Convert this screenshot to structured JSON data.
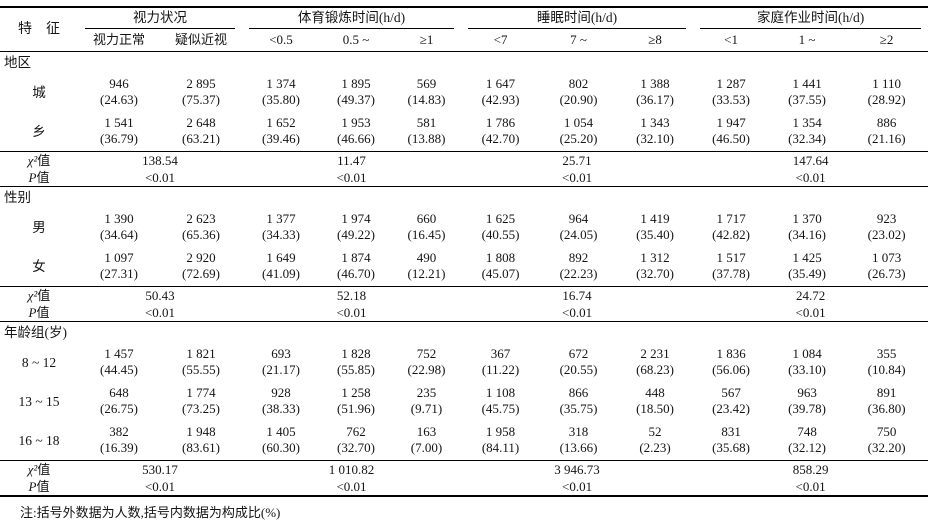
{
  "table": {
    "feature_header": "特　征",
    "groups": [
      {
        "label": "视力状况",
        "cols": [
          "视力正常",
          "疑似近视"
        ]
      },
      {
        "label": "体育锻炼时间(h/d)",
        "cols": [
          "<0.5",
          "0.5 ~",
          "≥1"
        ]
      },
      {
        "label": "睡眠时间(h/d)",
        "cols": [
          "<7",
          "7 ~",
          "≥8"
        ]
      },
      {
        "label": "家庭作业时间(h/d)",
        "cols": [
          "<1",
          "1 ~",
          "≥2"
        ]
      }
    ],
    "sections": [
      {
        "label": "地区",
        "rows": [
          {
            "label": "城",
            "cells": [
              [
                "946",
                "(24.63)"
              ],
              [
                "2 895",
                "(75.37)"
              ],
              [
                "1 374",
                "(35.80)"
              ],
              [
                "1 895",
                "(49.37)"
              ],
              [
                "569",
                "(14.83)"
              ],
              [
                "1 647",
                "(42.93)"
              ],
              [
                "802",
                "(20.90)"
              ],
              [
                "1 388",
                "(36.17)"
              ],
              [
                "1 287",
                "(33.53)"
              ],
              [
                "1 441",
                "(37.55)"
              ],
              [
                "1 110",
                "(28.92)"
              ]
            ]
          },
          {
            "label": "乡",
            "cells": [
              [
                "1 541",
                "(36.79)"
              ],
              [
                "2 648",
                "(63.21)"
              ],
              [
                "1 652",
                "(39.46)"
              ],
              [
                "1 953",
                "(46.66)"
              ],
              [
                "581",
                "(13.88)"
              ],
              [
                "1 786",
                "(42.70)"
              ],
              [
                "1 054",
                "(25.20)"
              ],
              [
                "1 343",
                "(32.10)"
              ],
              [
                "1 947",
                "(46.50)"
              ],
              [
                "1 354",
                "(32.34)"
              ],
              [
                "886",
                "(21.16)"
              ]
            ]
          }
        ],
        "stat_rows": [
          {
            "sym": "χ²",
            "suffix": "值",
            "values": [
              "138.54",
              "11.47",
              "25.71",
              "147.64"
            ]
          },
          {
            "sym": "P",
            "suffix": "值",
            "values": [
              "<0.01",
              "<0.01",
              "<0.01",
              "<0.01"
            ]
          }
        ]
      },
      {
        "label": "性别",
        "rows": [
          {
            "label": "男",
            "cells": [
              [
                "1 390",
                "(34.64)"
              ],
              [
                "2 623",
                "(65.36)"
              ],
              [
                "1 377",
                "(34.33)"
              ],
              [
                "1 974",
                "(49.22)"
              ],
              [
                "660",
                "(16.45)"
              ],
              [
                "1 625",
                "(40.55)"
              ],
              [
                "964",
                "(24.05)"
              ],
              [
                "1 419",
                "(35.40)"
              ],
              [
                "1 717",
                "(42.82)"
              ],
              [
                "1 370",
                "(34.16)"
              ],
              [
                "923",
                "(23.02)"
              ]
            ]
          },
          {
            "label": "女",
            "cells": [
              [
                "1 097",
                "(27.31)"
              ],
              [
                "2 920",
                "(72.69)"
              ],
              [
                "1 649",
                "(41.09)"
              ],
              [
                "1 874",
                "(46.70)"
              ],
              [
                "490",
                "(12.21)"
              ],
              [
                "1 808",
                "(45.07)"
              ],
              [
                "892",
                "(22.23)"
              ],
              [
                "1 312",
                "(32.70)"
              ],
              [
                "1 517",
                "(37.78)"
              ],
              [
                "1 425",
                "(35.49)"
              ],
              [
                "1 073",
                "(26.73)"
              ]
            ]
          }
        ],
        "stat_rows": [
          {
            "sym": "χ²",
            "suffix": "值",
            "values": [
              "50.43",
              "52.18",
              "16.74",
              "24.72"
            ]
          },
          {
            "sym": "P",
            "suffix": "值",
            "values": [
              "<0.01",
              "<0.01",
              "<0.01",
              "<0.01"
            ]
          }
        ]
      },
      {
        "label": "年龄组(岁)",
        "rows": [
          {
            "label": "8 ~ 12",
            "cells": [
              [
                "1 457",
                "(44.45)"
              ],
              [
                "1 821",
                "(55.55)"
              ],
              [
                "693",
                "(21.17)"
              ],
              [
                "1 828",
                "(55.85)"
              ],
              [
                "752",
                "(22.98)"
              ],
              [
                "367",
                "(11.22)"
              ],
              [
                "672",
                "(20.55)"
              ],
              [
                "2 231",
                "(68.23)"
              ],
              [
                "1 836",
                "(56.06)"
              ],
              [
                "1 084",
                "(33.10)"
              ],
              [
                "355",
                "(10.84)"
              ]
            ]
          },
          {
            "label": "13 ~ 15",
            "cells": [
              [
                "648",
                "(26.75)"
              ],
              [
                "1 774",
                "(73.25)"
              ],
              [
                "928",
                "(38.33)"
              ],
              [
                "1 258",
                "(51.96)"
              ],
              [
                "235",
                "(9.71)"
              ],
              [
                "1 108",
                "(45.75)"
              ],
              [
                "866",
                "(35.75)"
              ],
              [
                "448",
                "(18.50)"
              ],
              [
                "567",
                "(23.42)"
              ],
              [
                "963",
                "(39.78)"
              ],
              [
                "891",
                "(36.80)"
              ]
            ]
          },
          {
            "label": "16 ~ 18",
            "cells": [
              [
                "382",
                "(16.39)"
              ],
              [
                "1 948",
                "(83.61)"
              ],
              [
                "1 405",
                "(60.30)"
              ],
              [
                "762",
                "(32.70)"
              ],
              [
                "163",
                "(7.00)"
              ],
              [
                "1 958",
                "(84.11)"
              ],
              [
                "318",
                "(13.66)"
              ],
              [
                "52",
                "(2.23)"
              ],
              [
                "831",
                "(35.68)"
              ],
              [
                "748",
                "(32.12)"
              ],
              [
                "750",
                "(32.20)"
              ]
            ]
          }
        ],
        "stat_rows": [
          {
            "sym": "χ²",
            "suffix": "值",
            "values": [
              "530.17",
              "1 010.82",
              "3 946.73",
              "858.29"
            ]
          },
          {
            "sym": "P",
            "suffix": "值",
            "values": [
              "<0.01",
              "<0.01",
              "<0.01",
              "<0.01"
            ]
          }
        ]
      }
    ],
    "note": "注:括号外数据为人数,括号内数据为构成比(%)"
  }
}
